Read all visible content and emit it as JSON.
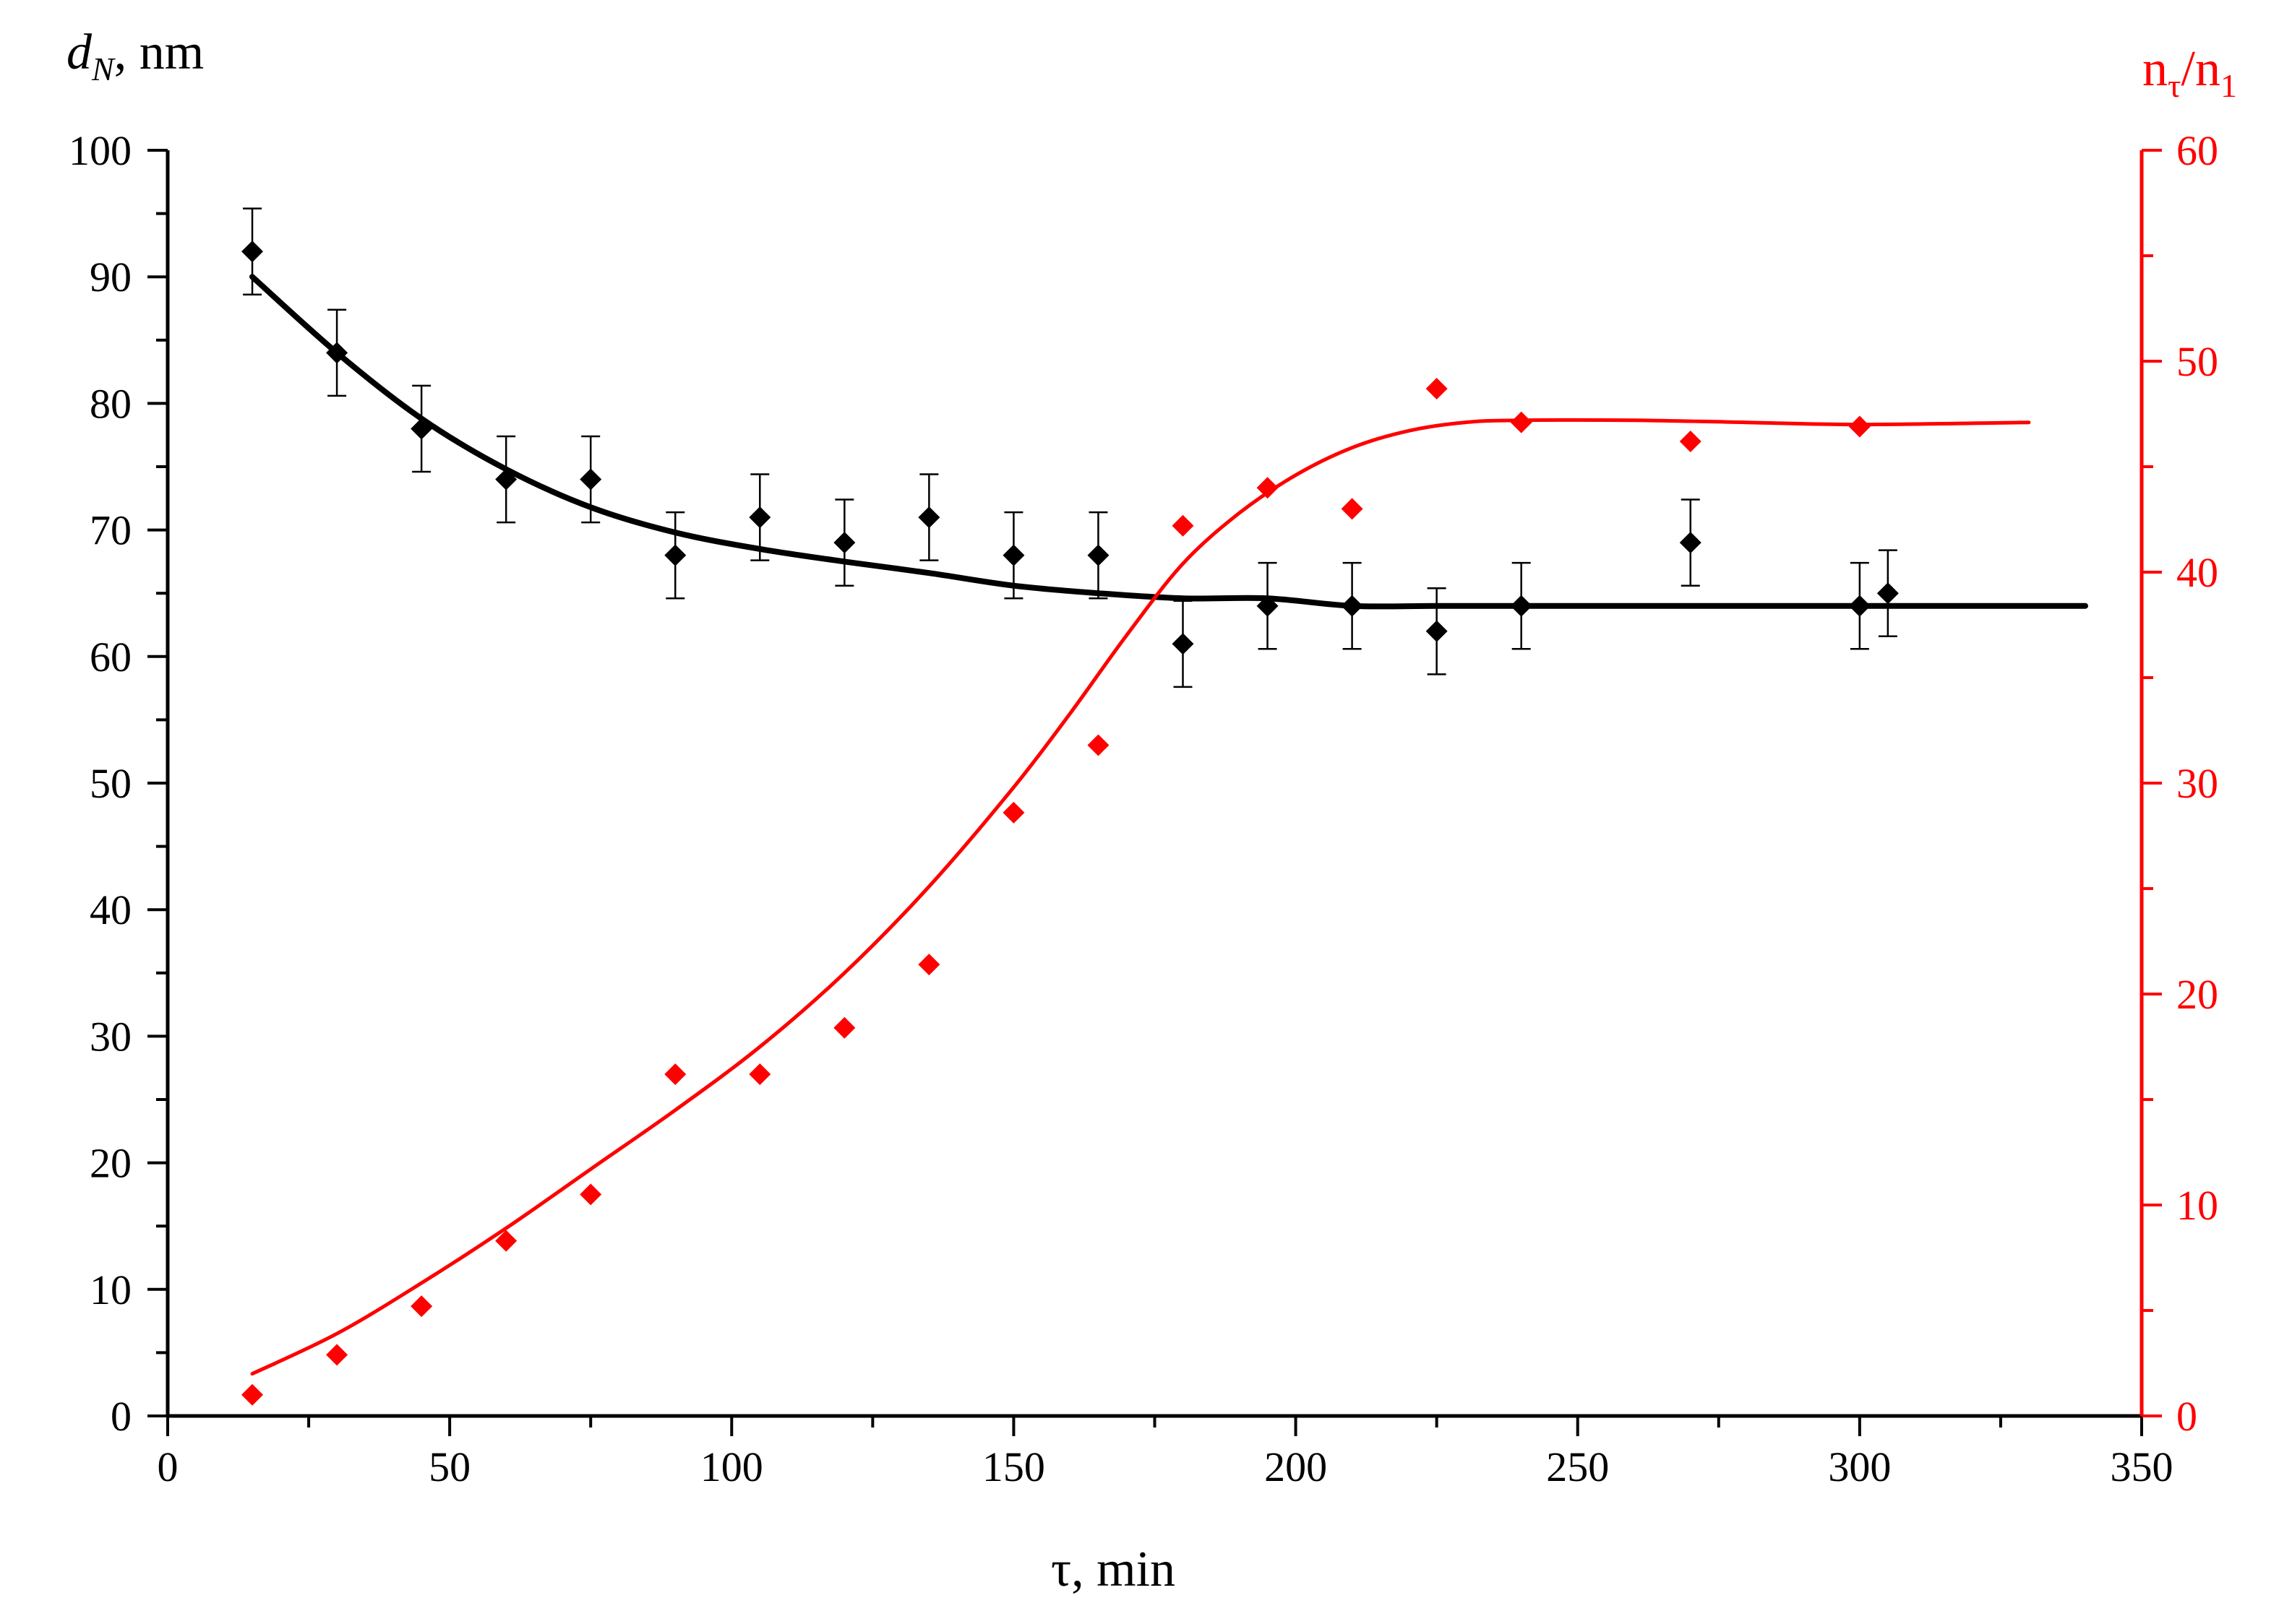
{
  "chart_data": {
    "type": "scatter",
    "title": "",
    "xlabel": "τ, min",
    "ylabel": {
      "base": "d",
      "sub": "N",
      "suffix": ", nm"
    },
    "y2label": {
      "a": "n",
      "a_sub": "τ",
      "slash": "/",
      "b": "n",
      "b_sub": "1"
    },
    "xlim": [
      0,
      350
    ],
    "ylim": [
      0,
      100
    ],
    "y2lim": [
      0,
      60
    ],
    "x_ticks": [
      "0",
      "50",
      "100",
      "150",
      "200",
      "250",
      "300",
      "350"
    ],
    "y_ticks": [
      "0",
      "10",
      "20",
      "30",
      "40",
      "50",
      "60",
      "70",
      "80",
      "90",
      "100"
    ],
    "y2_ticks": [
      "0",
      "10",
      "20",
      "30",
      "40",
      "50",
      "60"
    ],
    "colors": {
      "left": "#000000",
      "right": "#ff0000"
    },
    "series": [
      {
        "name": "d_N (points)",
        "axis": "left",
        "marker": "diamond",
        "color": "#000000",
        "x": [
          15,
          30,
          45,
          60,
          75,
          90,
          105,
          120,
          135,
          150,
          165,
          180,
          195,
          210,
          225,
          240,
          270,
          300,
          305
        ],
        "y": [
          92,
          84,
          78,
          74,
          74,
          68,
          71,
          69,
          71,
          68,
          68,
          61,
          64,
          64,
          62,
          64,
          69,
          64,
          65
        ],
        "err": [
          3.4,
          3.4,
          3.4,
          3.4,
          3.4,
          3.4,
          3.4,
          3.4,
          3.4,
          3.4,
          3.4,
          3.4,
          3.4,
          3.4,
          3.4,
          3.4,
          3.4,
          3.4,
          3.4
        ]
      },
      {
        "name": "d_N (fit)",
        "axis": "left",
        "type": "line",
        "color": "#000000",
        "x": [
          15,
          30,
          45,
          60,
          75,
          90,
          105,
          120,
          135,
          150,
          165,
          180,
          195,
          210,
          225,
          240,
          270,
          300,
          340
        ],
        "y": [
          90,
          84,
          78.8,
          74.8,
          71.8,
          69.8,
          68.5,
          67.5,
          66.6,
          65.6,
          65,
          64.6,
          64.6,
          64,
          64,
          64,
          64,
          64,
          64
        ]
      },
      {
        "name": "n_τ/n_1 (points)",
        "axis": "right",
        "marker": "diamond",
        "color": "#ff0000",
        "x": [
          15,
          30,
          45,
          60,
          75,
          90,
          105,
          120,
          135,
          150,
          165,
          180,
          195,
          210,
          225,
          240,
          270,
          300
        ],
        "y": [
          1,
          2.9,
          5.2,
          8.3,
          10.5,
          16.2,
          16.2,
          18.4,
          21.4,
          28.6,
          31.8,
          42.2,
          44,
          43,
          48.7,
          47.1,
          46.2,
          46.9
        ]
      },
      {
        "name": "n_τ/n_1 (fit)",
        "axis": "right",
        "type": "line",
        "color": "#ff0000",
        "x": [
          15,
          30,
          45,
          60,
          75,
          90,
          105,
          120,
          135,
          150,
          160,
          170,
          180,
          190,
          200,
          210,
          220,
          230,
          240,
          260,
          280,
          300,
          330
        ],
        "y": [
          2,
          3.9,
          6.3,
          8.9,
          11.7,
          14.5,
          17.5,
          21,
          25.1,
          29.8,
          33.3,
          37,
          40.4,
          42.8,
          44.6,
          45.9,
          46.7,
          47.1,
          47.2,
          47.2,
          47.1,
          47,
          47.1
        ]
      }
    ]
  }
}
